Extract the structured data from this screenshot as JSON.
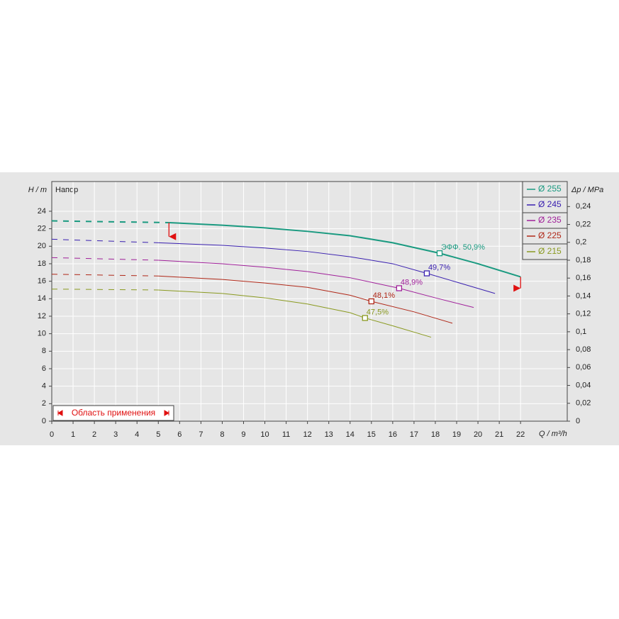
{
  "chart_data": {
    "type": "line",
    "title": "Напор",
    "xlabel": "Q / m³/h",
    "ylabel": "H / m",
    "y2label": "Δp / MPa",
    "xlim": [
      0,
      24.19
    ],
    "ylim": [
      0,
      27.4
    ],
    "y2lim": [
      0,
      0.268
    ],
    "xticks": [
      0,
      1,
      2,
      3,
      4,
      5,
      6,
      7,
      8,
      9,
      10,
      11,
      12,
      13,
      14,
      15,
      16,
      17,
      18,
      19,
      20,
      21,
      22
    ],
    "yticks": [
      0,
      2,
      4,
      6,
      8,
      10,
      12,
      14,
      16,
      18,
      20,
      22,
      24
    ],
    "y2ticks": [
      0,
      {
        "value": 0.02,
        "label": "0,02"
      },
      {
        "value": 0.04,
        "label": "0,04"
      },
      {
        "value": 0.06,
        "label": "0,06"
      },
      {
        "value": 0.08,
        "label": "0,08"
      },
      {
        "value": 0.1,
        "label": "0,1"
      },
      {
        "value": 0.12,
        "label": "0,12"
      },
      {
        "value": 0.14,
        "label": "0,14"
      },
      {
        "value": 0.16,
        "label": "0,16"
      },
      {
        "value": 0.18,
        "label": "0,18"
      },
      {
        "value": 0.2,
        "label": "0,2"
      },
      {
        "value": 0.22,
        "label": "0,22"
      },
      {
        "value": 0.24,
        "label": "0,24"
      }
    ],
    "grid": true,
    "legend": "top-right",
    "series": [
      {
        "name": "Ø 255",
        "color": "#1a9a80",
        "width": 2,
        "dash_end": 1,
        "x": [
          0,
          5.5,
          8,
          10,
          12,
          14,
          16,
          18.2,
          20,
          22
        ],
        "values": [
          22.9,
          22.7,
          22.4,
          22.1,
          21.7,
          21.2,
          20.4,
          19.2,
          18.0,
          16.5
        ],
        "efficiency": {
          "x": 18.2,
          "y": 19.2,
          "label": "ЭФФ.  50,9%"
        }
      },
      {
        "name": "Ø 245",
        "color": "#3a20b0",
        "width": 1,
        "dash_end": 1,
        "x": [
          0,
          5,
          8,
          10,
          12,
          14,
          16,
          17.6,
          19,
          20.8
        ],
        "values": [
          20.8,
          20.4,
          20.1,
          19.8,
          19.4,
          18.8,
          18.0,
          16.9,
          15.9,
          14.6
        ],
        "efficiency": {
          "x": 17.6,
          "y": 16.9,
          "label": "49,7%"
        }
      },
      {
        "name": "Ø 235",
        "color": "#a0209a",
        "width": 1,
        "dash_end": 1,
        "x": [
          0,
          5,
          8,
          10,
          12,
          14,
          16.3,
          18,
          19.8
        ],
        "values": [
          18.7,
          18.4,
          18.0,
          17.6,
          17.1,
          16.4,
          15.2,
          14.1,
          13.0
        ],
        "efficiency": {
          "x": 16.3,
          "y": 15.2,
          "label": "48,9%"
        }
      },
      {
        "name": "Ø 225",
        "color": "#b02818",
        "width": 1,
        "dash_end": 1,
        "x": [
          0,
          5,
          8,
          10,
          12,
          14,
          15,
          17,
          18.8
        ],
        "values": [
          16.8,
          16.6,
          16.2,
          15.8,
          15.3,
          14.4,
          13.7,
          12.5,
          11.2
        ],
        "efficiency": {
          "x": 15,
          "y": 13.7,
          "label": "48,1%"
        }
      },
      {
        "name": "Ø 215",
        "color": "#8a9a20",
        "width": 1,
        "dash_end": 1,
        "x": [
          0,
          5,
          8,
          10,
          12,
          14,
          14.7,
          16,
          17.8
        ],
        "values": [
          15.1,
          15.0,
          14.6,
          14.1,
          13.4,
          12.4,
          11.8,
          10.9,
          9.6
        ],
        "efficiency": {
          "x": 14.7,
          "y": 11.8,
          "label": "47,5%"
        }
      }
    ],
    "range": {
      "label": "Область применения",
      "x": [
        5.5,
        22
      ],
      "low": [
        21.1,
        15.2
      ],
      "color": "#e01010"
    }
  }
}
